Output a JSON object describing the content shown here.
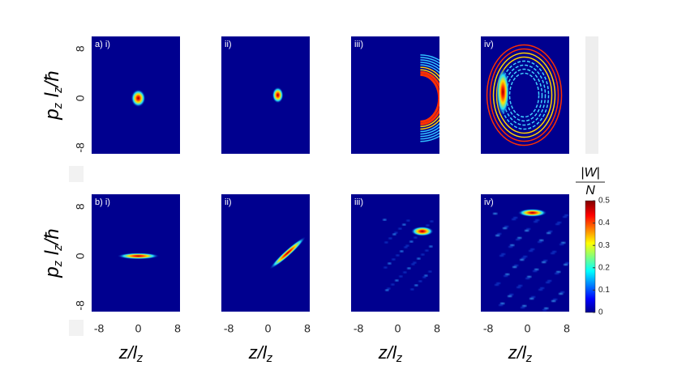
{
  "axes": {
    "x_label": [
      {
        "text": "z/l",
        "sub": false
      },
      {
        "text": "z",
        "sub": true
      }
    ],
    "y_label": [
      {
        "text": "p",
        "sub": false
      },
      {
        "text": "z",
        "sub": true
      },
      {
        "text": " l",
        "sub": false
      },
      {
        "text": "z",
        "sub": true
      },
      {
        "text": "/ħ",
        "sub": false
      }
    ],
    "xlim": [
      -9.5,
      8.5
    ],
    "xticks": [
      -8,
      0,
      8
    ],
    "ylim": [
      -9,
      10
    ],
    "yticks": [
      -8,
      0,
      8
    ]
  },
  "colorbar": {
    "label_top": "|W|",
    "label_bottom": "N",
    "lim": [
      0,
      0.5
    ],
    "ticks": [
      0,
      0.1,
      0.2,
      0.3,
      0.4,
      0.5
    ]
  },
  "chart_data": [
    {
      "type": "heatmap",
      "label": "a) i)"
    },
    {
      "type": "heatmap",
      "label": "ii)"
    },
    {
      "type": "heatmap",
      "label": "iii)"
    },
    {
      "type": "heatmap",
      "label": "iv)"
    },
    {
      "type": "heatmap",
      "label": "b) i)"
    },
    {
      "type": "heatmap",
      "label": "ii)"
    },
    {
      "type": "heatmap",
      "label": "iii)"
    },
    {
      "type": "heatmap",
      "label": "iv)"
    }
  ]
}
